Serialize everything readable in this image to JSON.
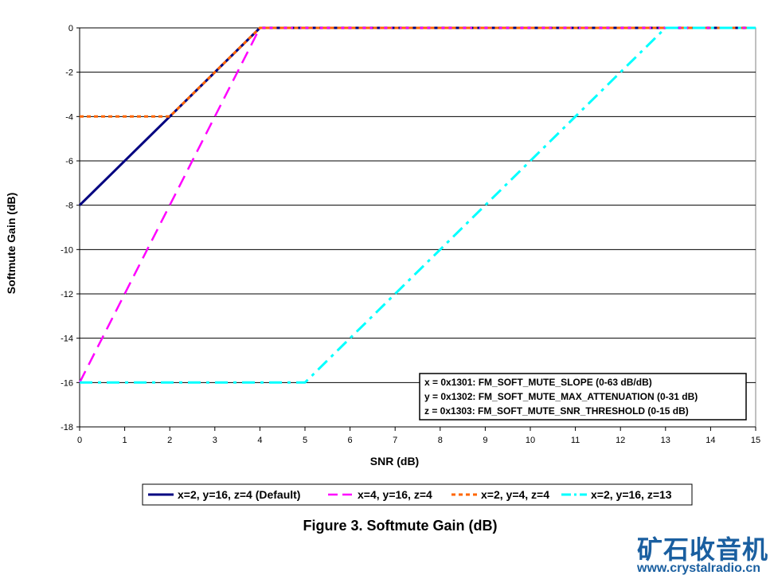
{
  "chart_data": {
    "type": "line",
    "title": "",
    "xlabel": "SNR (dB)",
    "ylabel": "Softmute Gain (dB)",
    "xlim": [
      0,
      15
    ],
    "ylim": [
      -18,
      0
    ],
    "x_ticks": [
      0,
      1,
      2,
      3,
      4,
      5,
      6,
      7,
      8,
      9,
      10,
      11,
      12,
      13,
      14,
      15
    ],
    "y_ticks": [
      0,
      -2,
      -4,
      -6,
      -8,
      -10,
      -12,
      -14,
      -16,
      -18
    ],
    "grid": "horizontal",
    "legend_position": "bottom",
    "series": [
      {
        "name": "x=2, y=16, z=4 (Default)",
        "color": "#000080",
        "dash": "solid",
        "x": [
          0,
          4,
          15
        ],
        "y": [
          -8,
          0,
          0
        ]
      },
      {
        "name": "x=4, y=16, z=4",
        "color": "#ff00ff",
        "dash": "dash",
        "x": [
          0,
          4,
          15
        ],
        "y": [
          -16,
          0,
          0
        ]
      },
      {
        "name": "x=2, y=4, z=4",
        "color": "#ff6600",
        "dash": "dot",
        "x": [
          0,
          2,
          4,
          15
        ],
        "y": [
          -4,
          -4,
          0,
          0
        ]
      },
      {
        "name": "x=2, y=16, z=13",
        "color": "#00ffff",
        "dash": "dashdot",
        "x": [
          0,
          5,
          13,
          15
        ],
        "y": [
          -16,
          -16,
          0,
          0
        ]
      }
    ],
    "annotation_lines": [
      "x = 0x1301: FM_SOFT_MUTE_SLOPE (0-63 dB/dB)",
      "y = 0x1302: FM_SOFT_MUTE_MAX_ATTENUATION (0-31 dB)",
      "z = 0x1303: FM_SOFT_MUTE_SNR_THRESHOLD (0-15 dB)"
    ]
  },
  "caption": "Figure 3. Softmute Gain (dB)",
  "watermark": {
    "text": "矿石收音机",
    "url": "www.crystalradio.cn"
  }
}
